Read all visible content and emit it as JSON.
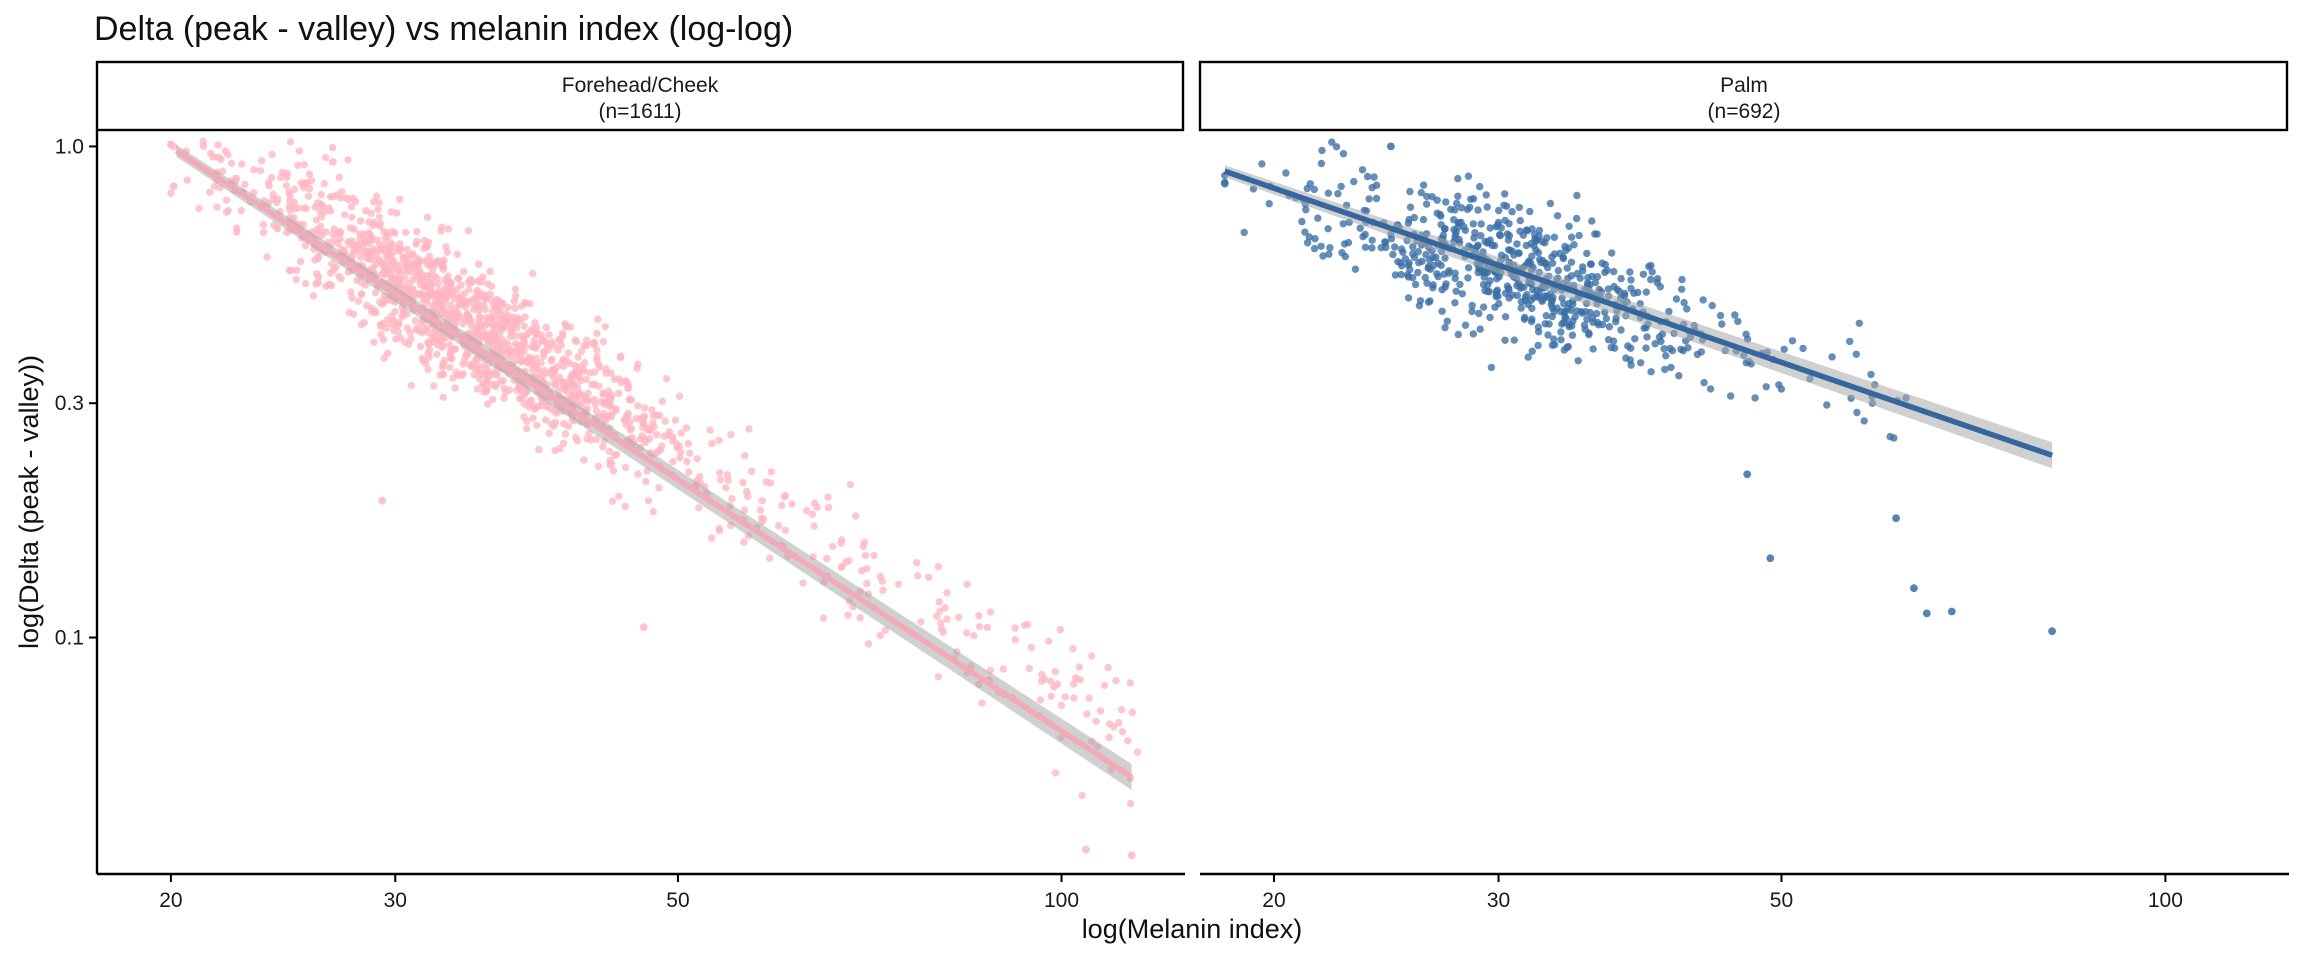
{
  "chart_data": {
    "type": "scatter",
    "title": "Delta (peak - valley) vs melanin index (log-log)",
    "xlabel": "log(Melanin index)",
    "ylabel": "log(Delta (peak - valley))",
    "x_scale": "log10",
    "y_scale": "log10",
    "xlim": [
      17.5,
      125
    ],
    "ylim": [
      0.033,
      1.08
    ],
    "x_ticks": [
      20,
      30,
      50,
      100
    ],
    "y_ticks": [
      0.1,
      0.3,
      1.0
    ],
    "x_tick_labels": [
      "20",
      "30",
      "50",
      "100"
    ],
    "y_tick_labels": [
      "0.1",
      "0.3",
      "1.0"
    ],
    "grid": false,
    "legend": "none",
    "panels": [
      {
        "label": "Forehead/Cheek",
        "n_label": "(n=1611)",
        "n": 1611,
        "color": "#ffb6c1",
        "fit_color": "#f4a9b8",
        "fit": {
          "x": [
            20.2,
            113.5
          ],
          "y": [
            0.98,
            0.052
          ]
        },
        "cloud": {
          "x_range": [
            20,
            115
          ],
          "slope": -1.6,
          "center_x": 34,
          "center_y": 0.44,
          "spread": 0.2
        },
        "highlight_points": [
          {
            "x": 20.1,
            "y": 0.83
          },
          {
            "x": 22.5,
            "y": 0.86
          },
          {
            "x": 26.8,
            "y": 0.93
          },
          {
            "x": 29.3,
            "y": 0.19
          },
          {
            "x": 47.0,
            "y": 0.105
          },
          {
            "x": 104.5,
            "y": 0.037
          },
          {
            "x": 113.5,
            "y": 0.036
          }
        ]
      },
      {
        "label": "Palm",
        "n_label": "(n=692)",
        "n": 692,
        "color": "#3a6ea5",
        "fit_color": "#34679e",
        "fit": {
          "x": [
            18.3,
            81.5
          ],
          "y": [
            0.89,
            0.235
          ]
        },
        "cloud": {
          "x_range": [
            18.3,
            63
          ],
          "slope": -0.85,
          "center_x": 31,
          "center_y": 0.55,
          "spread": 0.2
        },
        "highlight_points": [
          {
            "x": 18.3,
            "y": 0.84
          },
          {
            "x": 24.7,
            "y": 1.0
          },
          {
            "x": 47.0,
            "y": 0.215
          },
          {
            "x": 49.0,
            "y": 0.145
          },
          {
            "x": 61.5,
            "y": 0.175
          },
          {
            "x": 63.5,
            "y": 0.126
          },
          {
            "x": 65.0,
            "y": 0.112
          },
          {
            "x": 68.0,
            "y": 0.113
          },
          {
            "x": 81.5,
            "y": 0.103
          }
        ]
      }
    ]
  }
}
